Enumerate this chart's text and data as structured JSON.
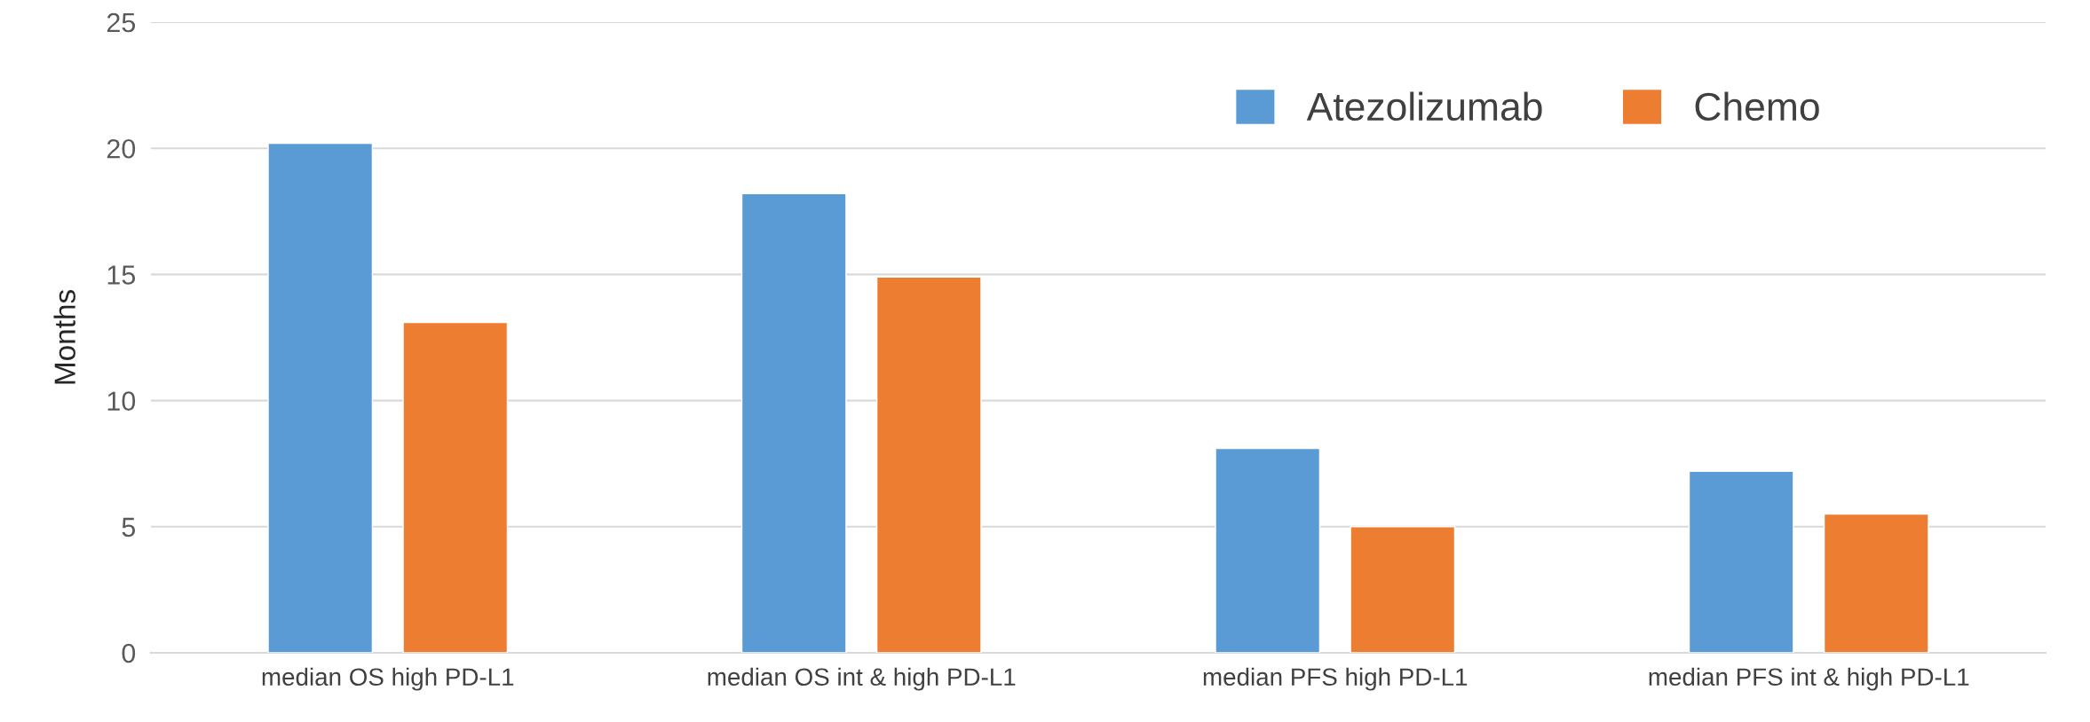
{
  "chart_data": {
    "type": "bar",
    "ylabel": "Months",
    "categories": [
      "median OS high PD-L1",
      "median OS int & high PD-L1",
      "median PFS high PD-L1",
      "median PFS int & high PD-L1"
    ],
    "series": [
      {
        "name": "Atezolizumab",
        "color": "#5b9bd5",
        "values": [
          20.2,
          18.2,
          8.1,
          7.2
        ]
      },
      {
        "name": "Chemo",
        "color": "#ed7d31",
        "values": [
          13.1,
          14.9,
          5.0,
          5.5
        ]
      }
    ],
    "ylim": [
      0,
      25
    ],
    "yticks": [
      0,
      5,
      10,
      15,
      20,
      25
    ],
    "grid": "y",
    "legend": "top right"
  }
}
